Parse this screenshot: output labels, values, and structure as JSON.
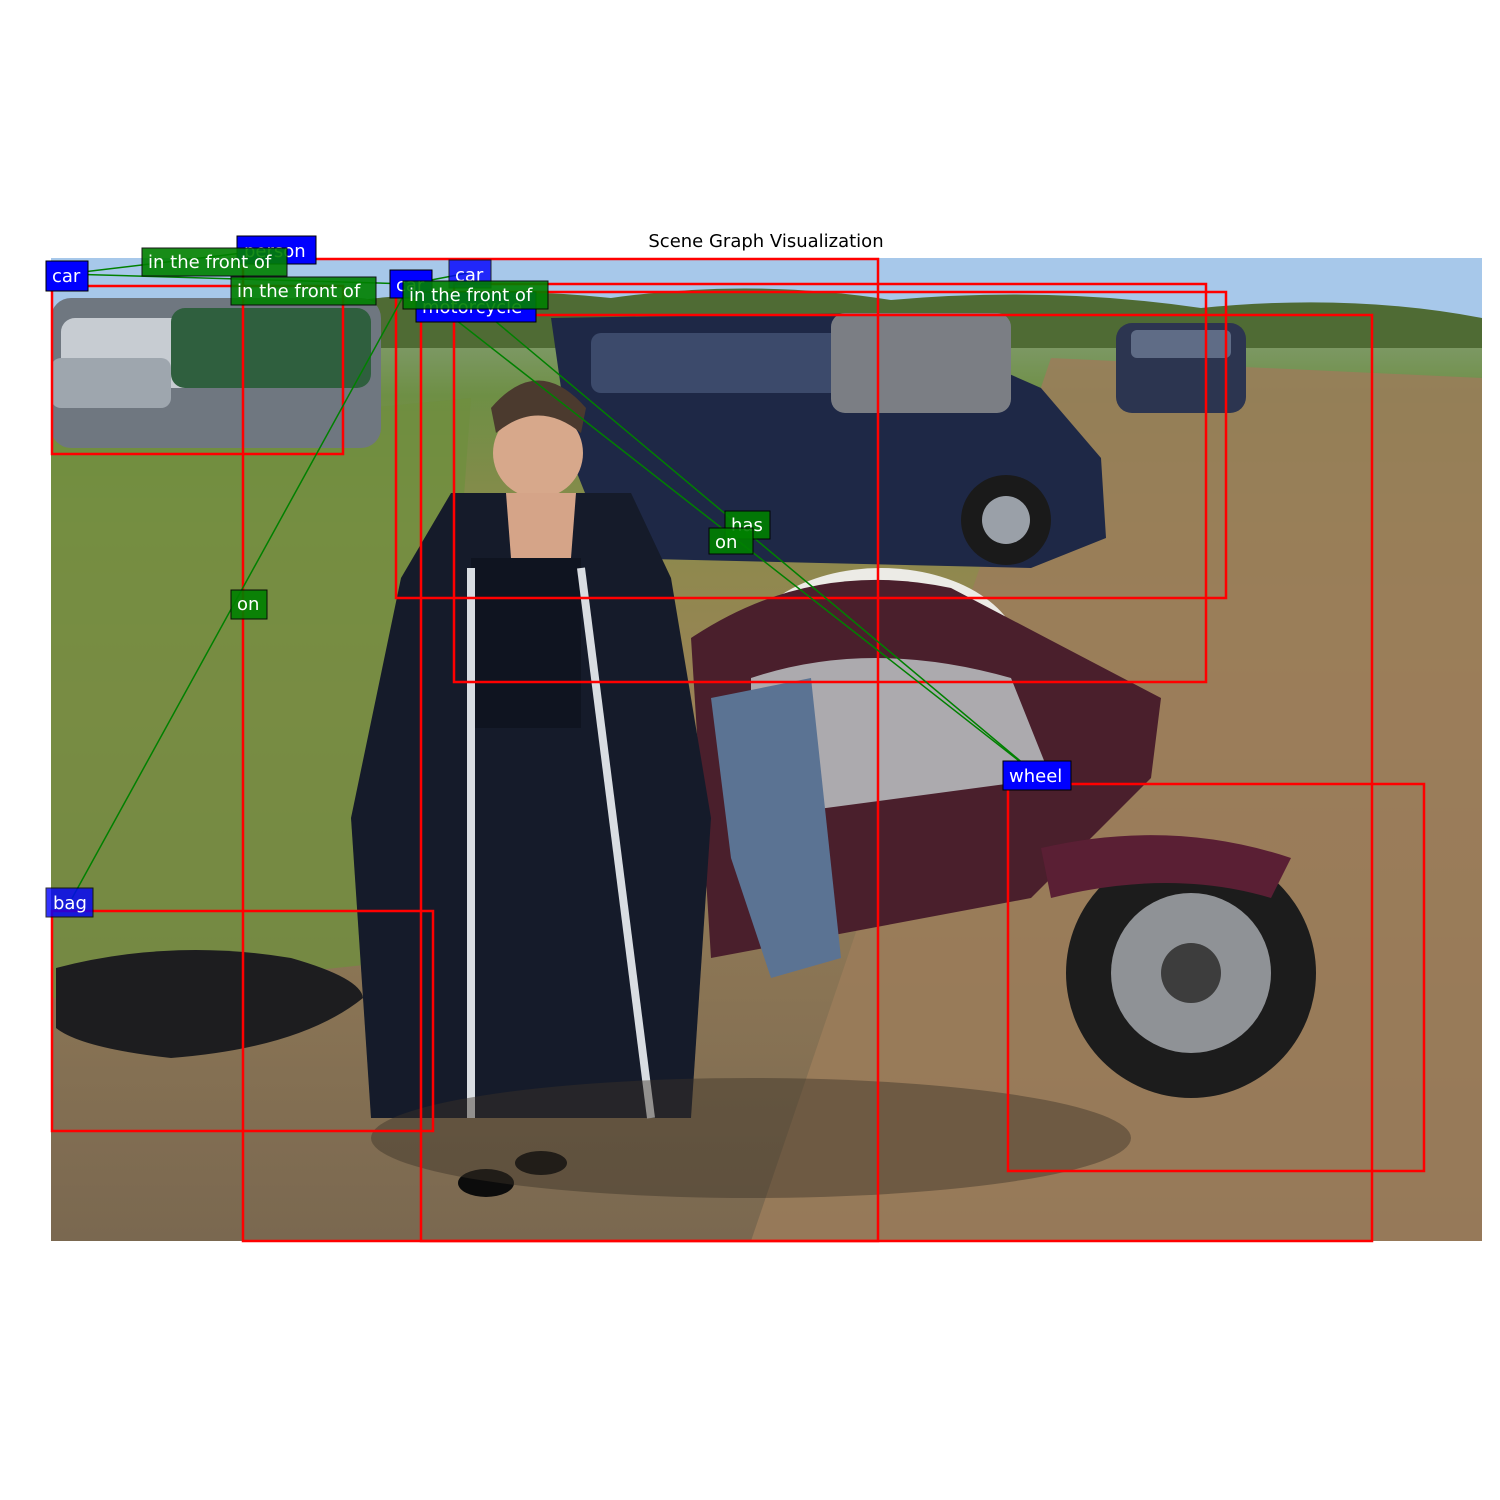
{
  "title": "Scene Graph Visualization",
  "colors": {
    "object_label_bg": "#0000ff",
    "relation_label_bg": "#008000",
    "box_stroke": "#ff0000",
    "edge_stroke": "#008000",
    "label_text": "#ffffff"
  },
  "objects": [
    {
      "id": "person",
      "label": "person"
    },
    {
      "id": "car-1",
      "label": "car"
    },
    {
      "id": "car-2",
      "label": "car"
    },
    {
      "id": "car-3",
      "label": "car"
    },
    {
      "id": "motorcycle",
      "label": "motorcycle"
    },
    {
      "id": "wheel",
      "label": "wheel"
    },
    {
      "id": "bag",
      "label": "bag"
    }
  ],
  "relations": [
    {
      "subject": "car-1",
      "predicate": "in the front of",
      "object": "person"
    },
    {
      "subject": "car-1",
      "predicate": "in the front of",
      "object": "car-2"
    },
    {
      "subject": "car-2",
      "predicate": "in the front of",
      "object": "car-3"
    },
    {
      "subject": "bag",
      "predicate": "on",
      "object": "car-2"
    },
    {
      "subject": "motorcycle",
      "predicate": "has",
      "object": "wheel"
    },
    {
      "subject": "car-2",
      "predicate": "on",
      "object": "wheel"
    }
  ]
}
